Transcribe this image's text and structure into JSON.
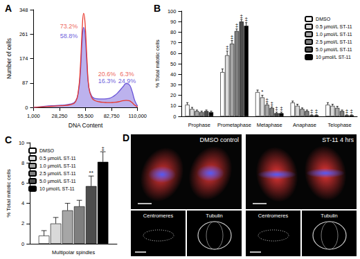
{
  "chart_data": [
    {
      "type": "line",
      "title": "A",
      "xlabel": "DNA Content",
      "ylabel": "Number of cells",
      "x": [
        1000,
        10000,
        20000,
        30000,
        40000,
        45000,
        48000,
        50000,
        52000,
        53500,
        55000,
        57000,
        59000,
        62000,
        65000,
        70000,
        75000,
        80000,
        85000,
        90000,
        95000,
        98000,
        101000,
        104000,
        107000,
        110000
      ],
      "series": [
        {
          "type": "area",
          "color": "#6a55d8",
          "values": [
            0,
            3,
            6,
            8,
            12,
            22,
            55,
            120,
            240,
            285,
            260,
            150,
            70,
            40,
            32,
            30,
            30,
            32,
            40,
            55,
            75,
            85,
            82,
            60,
            25,
            5
          ]
        },
        {
          "type": "line",
          "color": "#e8372c",
          "values": [
            0,
            2,
            4,
            6,
            10,
            20,
            60,
            140,
            280,
            335,
            300,
            170,
            70,
            35,
            25,
            20,
            18,
            17,
            18,
            20,
            24,
            25,
            24,
            18,
            8,
            2
          ]
        }
      ],
      "annotations": [
        {
          "text": "73.2%",
          "x": 38000,
          "y": 290,
          "color": "#e8372c"
        },
        {
          "text": "58.8%",
          "x": 38000,
          "y": 255,
          "color": "#3f2fd1"
        },
        {
          "text": "20.6%",
          "x": 78000,
          "y": 118,
          "color": "#e8372c"
        },
        {
          "text": "16.3%",
          "x": 78000,
          "y": 95,
          "color": "#3f2fd1"
        },
        {
          "text": "6.3%",
          "x": 99000,
          "y": 118,
          "color": "#e8372c"
        },
        {
          "text": "24.9%",
          "x": 99000,
          "y": 95,
          "color": "#3f2fd1"
        }
      ],
      "xlim": [
        1000,
        110000
      ],
      "xticks": [
        {
          "value": 1000,
          "label": "1,000"
        },
        {
          "value": 28250,
          "label": "28,250"
        },
        {
          "value": 55500,
          "label": "55,500"
        },
        {
          "value": 82750,
          "label": "82,750"
        },
        {
          "value": 110000,
          "label": "110,000"
        }
      ],
      "ylim": [
        0,
        348
      ],
      "yticks": [
        0,
        87,
        174,
        261,
        348
      ],
      "grid": false
    },
    {
      "type": "bar",
      "title": "B",
      "ylabel": "% Total mitotic cells",
      "categories": [
        "Prophase",
        "Prometaphase",
        "Metaphase",
        "Anaphase",
        "Telophase"
      ],
      "series": [
        {
          "name": "DMSO",
          "color": "#ffffff",
          "values": [
            11,
            42,
            23,
            13,
            11
          ],
          "errors": [
            2,
            3,
            2,
            1.5,
            2
          ],
          "significance": [
            null,
            null,
            null,
            null,
            null
          ]
        },
        {
          "name": "0.5 µmol/L ST-11",
          "color": "#d9d9d9",
          "values": [
            7,
            58,
            18,
            10,
            10
          ],
          "errors": [
            1.5,
            4,
            2,
            1.5,
            1.5
          ],
          "significance": [
            null,
            "‡",
            "*",
            null,
            null
          ]
        },
        {
          "name": "1.0 µmol/L ST-11",
          "color": "#a6a6a6",
          "values": [
            5,
            69,
            11,
            7,
            8
          ],
          "errors": [
            1,
            3,
            1.5,
            1,
            1.5
          ],
          "significance": [
            null,
            "‡",
            "‡",
            null,
            null
          ]
        },
        {
          "name": "2.5 µmol/L ST-11",
          "color": "#7f7f7f",
          "values": [
            4,
            81,
            8,
            5,
            5
          ],
          "errors": [
            1,
            2,
            1,
            1,
            1
          ],
          "significance": [
            null,
            "‡",
            "‡",
            null,
            null
          ]
        },
        {
          "name": "5.0 µmol/L ST-11",
          "color": "#4d4d4d",
          "values": [
            5,
            90,
            3,
            1,
            1
          ],
          "errors": [
            1,
            2,
            1,
            0.5,
            0.5
          ],
          "significance": [
            null,
            "‡",
            "‡",
            "‡",
            "‡"
          ]
        },
        {
          "name": "10 µmol/L ST-11",
          "color": "#000000",
          "values": [
            4,
            86,
            3,
            1,
            1
          ],
          "errors": [
            1,
            3,
            1,
            0.5,
            0.5
          ],
          "significance": [
            null,
            "‡",
            "‡",
            "‡",
            "‡"
          ]
        }
      ],
      "ylim": [
        0,
        100
      ],
      "yticks": [
        0,
        10,
        20,
        30,
        40,
        50,
        60,
        70,
        80,
        90,
        100
      ],
      "legend": "top-right",
      "grid": false
    },
    {
      "type": "bar",
      "title": "C",
      "ylabel": "% Total mitotic cells",
      "categories": [
        "Multipolar spindles"
      ],
      "series": [
        {
          "name": "DMSO",
          "color": "#ffffff",
          "values": [
            0.8
          ],
          "errors": [
            0.5
          ],
          "significance": [
            null
          ]
        },
        {
          "name": "0.5 µmol/L ST-11",
          "color": "#d9d9d9",
          "values": [
            2.0
          ],
          "errors": [
            0.6
          ],
          "significance": [
            null
          ]
        },
        {
          "name": "1.0 µmol/L ST-11",
          "color": "#a6a6a6",
          "values": [
            3.3
          ],
          "errors": [
            0.7
          ],
          "significance": [
            null
          ]
        },
        {
          "name": "2.5 µmol/L ST-11",
          "color": "#7f7f7f",
          "values": [
            3.7
          ],
          "errors": [
            0.6
          ],
          "significance": [
            null
          ]
        },
        {
          "name": "5.0 µmol/L ST-11",
          "color": "#4d4d4d",
          "values": [
            5.7
          ],
          "errors": [
            1.0
          ],
          "significance": [
            "**"
          ]
        },
        {
          "name": "10 µmol/L ST-11",
          "color": "#000000",
          "values": [
            8.1
          ],
          "errors": [
            1.0
          ],
          "significance": [
            "‡"
          ]
        }
      ],
      "ylim": [
        0,
        10
      ],
      "yticks": [
        0,
        2,
        4,
        6,
        8,
        10
      ],
      "legend": "top-left",
      "grid": false
    }
  ],
  "image_panel": {
    "title": "D",
    "images": [
      {
        "label": "DMSO control",
        "insets": [
          "Centromeres",
          "Tubulin"
        ]
      },
      {
        "label": "ST-11 4 hrs",
        "insets": [
          "Centromeres",
          "Tubulin"
        ]
      }
    ]
  }
}
